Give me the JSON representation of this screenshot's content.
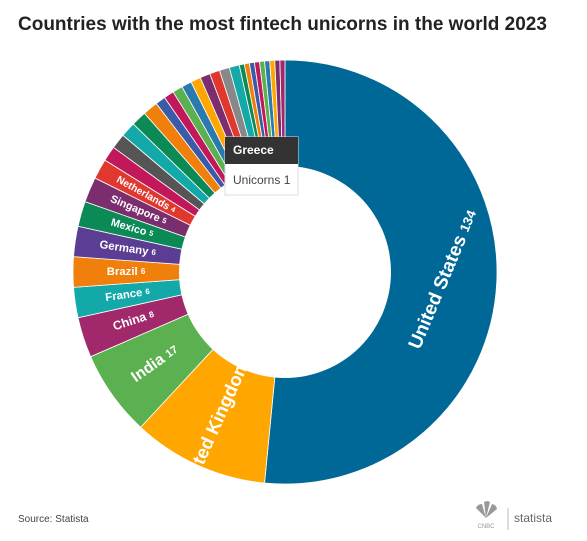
{
  "chart_data": {
    "type": "pie",
    "title": "Countries with the most fintech unicorns in the world 2023",
    "categories": [
      "United States",
      "United Kingdom",
      "India",
      "China",
      "France",
      "Brazil",
      "Germany",
      "Mexico",
      "Singapore",
      "Netherlands",
      null,
      null,
      null,
      null,
      null,
      null,
      null,
      null,
      null,
      null,
      null,
      null,
      null,
      null,
      null,
      null,
      "Greece",
      null,
      null,
      null,
      null,
      null,
      null
    ],
    "values": [
      134,
      27,
      17,
      8,
      6,
      6,
      6,
      5,
      5,
      4,
      3,
      3,
      3,
      3,
      3,
      2,
      2,
      2,
      2,
      2,
      2,
      2,
      2,
      2,
      1,
      1,
      1,
      1,
      1,
      1,
      1,
      1,
      1
    ],
    "colors": [
      "#006896",
      "#ffa600",
      "#5bb04f",
      "#a0286b",
      "#14a9a9",
      "#f07f0c",
      "#5b3e93",
      "#0b8a56",
      "#7b2e6e",
      "#e0382f",
      "#c2185b",
      "#555555",
      "#14a9a9",
      "#0b8a56",
      "#f07f0c",
      "#3b5ba9",
      "#c2185b",
      "#5bb04f",
      "#2a7ab0",
      "#ffa600",
      "#7b2e6e",
      "#e0382f",
      "#888888",
      "#14a9a9",
      "#0b8a56",
      "#f07f0c",
      "#3b5ba9",
      "#c2185b",
      "#5bb04f",
      "#2a7ab0",
      "#ffa600",
      "#7b2e6e",
      "#a0286b"
    ],
    "tooltip": {
      "label": "Unicorns"
    },
    "source": "Source: Statista",
    "logos": [
      "CNBC",
      "statista"
    ]
  }
}
